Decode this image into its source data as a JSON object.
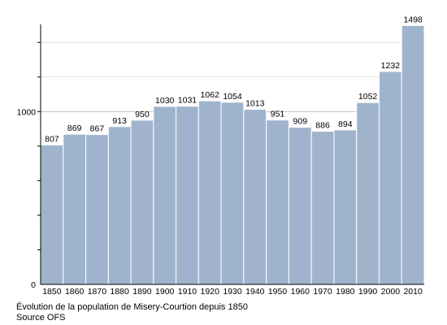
{
  "chart_data": {
    "type": "bar",
    "categories": [
      "1850",
      "1860",
      "1870",
      "1880",
      "1890",
      "1900",
      "1910",
      "1920",
      "1930",
      "1940",
      "1950",
      "1960",
      "1970",
      "1980",
      "1990",
      "2000",
      "2010"
    ],
    "values": [
      807,
      869,
      867,
      913,
      950,
      1030,
      1031,
      1062,
      1054,
      1013,
      951,
      909,
      886,
      894,
      1052,
      1232,
      1498
    ],
    "ylim": [
      0,
      1500
    ],
    "yticks": [
      0,
      1000
    ],
    "minor_gridlines": [
      200,
      400,
      600,
      800,
      1200,
      1400
    ],
    "grid": true,
    "data_labels": true,
    "bar_color": "#9fb4cc",
    "bar_edge_color": "#ffffff",
    "grid_color": "#cccccc"
  },
  "captions": {
    "line1": "Évolution de la population de Misery-Courtion depuis 1850",
    "line2": "Source OFS"
  }
}
